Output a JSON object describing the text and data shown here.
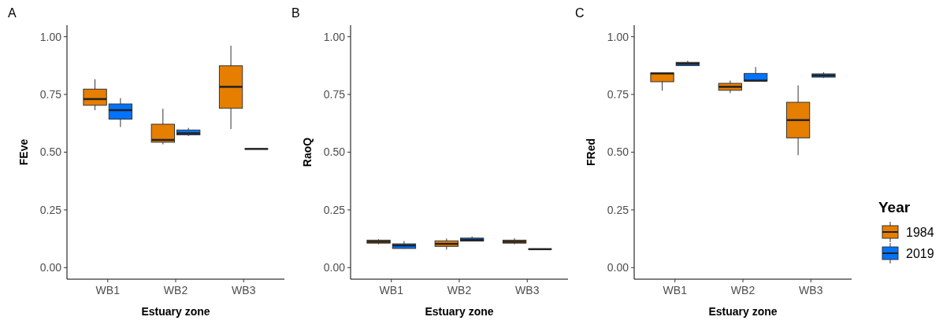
{
  "chart_data": [
    {
      "type": "box",
      "title": "A",
      "xlabel": "Estuary zone",
      "ylabel": "FEve",
      "categories": [
        "WB1",
        "WB2",
        "WB3"
      ],
      "ylim": [
        -0.05,
        1.05
      ],
      "yticks": [
        {
          "value": 0,
          "label": "0.00"
        },
        {
          "value": 0.25,
          "label": "0.25"
        },
        {
          "value": 0.5,
          "label": "0.50"
        },
        {
          "value": 0.75,
          "label": "0.75"
        },
        {
          "value": 1,
          "label": "1.00"
        }
      ],
      "grid": false,
      "legend": false,
      "series": [
        {
          "color": "#e67e00",
          "boxes": [
            {
              "low": 0.682,
              "q1": 0.703,
              "median": 0.73,
              "q3": 0.773,
              "high": 0.816
            },
            {
              "low": 0.534,
              "q1": 0.543,
              "median": 0.553,
              "q3": 0.621,
              "high": 0.688
            },
            {
              "low": 0.6,
              "q1": 0.69,
              "median": 0.783,
              "q3": 0.874,
              "high": 0.961
            }
          ]
        },
        {
          "color": "#0073ff",
          "boxes": [
            {
              "low": 0.609,
              "q1": 0.643,
              "median": 0.682,
              "q3": 0.709,
              "high": 0.734
            },
            {
              "low": 0.57,
              "q1": 0.575,
              "median": 0.582,
              "q3": 0.596,
              "high": 0.605
            },
            {
              "low": 0.514,
              "q1": 0.514,
              "median": 0.514,
              "q3": 0.514,
              "high": 0.514
            }
          ]
        }
      ]
    },
    {
      "type": "box",
      "title": "B",
      "xlabel": "Estuary zone",
      "ylabel": "RaoQ",
      "categories": [
        "WB1",
        "WB2",
        "WB3"
      ],
      "ylim": [
        -0.05,
        1.05
      ],
      "yticks": [
        {
          "value": 0,
          "label": "0.00"
        },
        {
          "value": 0.25,
          "label": "0.25"
        },
        {
          "value": 0.5,
          "label": "0.50"
        },
        {
          "value": 0.75,
          "label": "0.75"
        },
        {
          "value": 1,
          "label": "1.00"
        }
      ],
      "grid": false,
      "legend": false,
      "series": [
        {
          "color": "#e67e00",
          "boxes": [
            {
              "low": 0.101,
              "q1": 0.106,
              "median": 0.112,
              "q3": 0.119,
              "high": 0.123
            },
            {
              "low": 0.078,
              "q1": 0.092,
              "median": 0.103,
              "q3": 0.116,
              "high": 0.126
            },
            {
              "low": 0.101,
              "q1": 0.106,
              "median": 0.112,
              "q3": 0.119,
              "high": 0.127
            }
          ]
        },
        {
          "color": "#0073ff",
          "boxes": [
            {
              "low": 0.082,
              "q1": 0.083,
              "median": 0.096,
              "q3": 0.103,
              "high": 0.115
            },
            {
              "low": 0.115,
              "q1": 0.115,
              "median": 0.12,
              "q3": 0.128,
              "high": 0.135
            },
            {
              "low": 0.08,
              "q1": 0.08,
              "median": 0.08,
              "q3": 0.08,
              "high": 0.08
            }
          ]
        }
      ]
    },
    {
      "type": "box",
      "title": "C",
      "xlabel": "Estuary zone",
      "ylabel": "FRed",
      "legend_title": "Year",
      "categories": [
        "WB1",
        "WB2",
        "WB3"
      ],
      "ylim": [
        -0.05,
        1.05
      ],
      "yticks": [
        {
          "value": 0,
          "label": "0.00"
        },
        {
          "value": 0.25,
          "label": "0.25"
        },
        {
          "value": 0.5,
          "label": "0.50"
        },
        {
          "value": 0.75,
          "label": "0.75"
        },
        {
          "value": 1,
          "label": "1.00"
        }
      ],
      "grid": false,
      "legend": "right",
      "series": [
        {
          "name": "1984",
          "color": "#e67e00",
          "boxes": [
            {
              "low": 0.767,
              "q1": 0.805,
              "median": 0.841,
              "q3": 0.843,
              "high": 0.843
            },
            {
              "low": 0.756,
              "q1": 0.768,
              "median": 0.783,
              "q3": 0.798,
              "high": 0.81
            },
            {
              "low": 0.487,
              "q1": 0.562,
              "median": 0.639,
              "q3": 0.716,
              "high": 0.789
            }
          ]
        },
        {
          "name": "2019",
          "color": "#0073ff",
          "boxes": [
            {
              "low": 0.875,
              "q1": 0.875,
              "median": 0.883,
              "q3": 0.889,
              "high": 0.896
            },
            {
              "low": 0.808,
              "q1": 0.808,
              "median": 0.81,
              "q3": 0.841,
              "high": 0.869
            },
            {
              "low": 0.821,
              "q1": 0.825,
              "median": 0.832,
              "q3": 0.839,
              "high": 0.846
            }
          ]
        }
      ]
    }
  ]
}
